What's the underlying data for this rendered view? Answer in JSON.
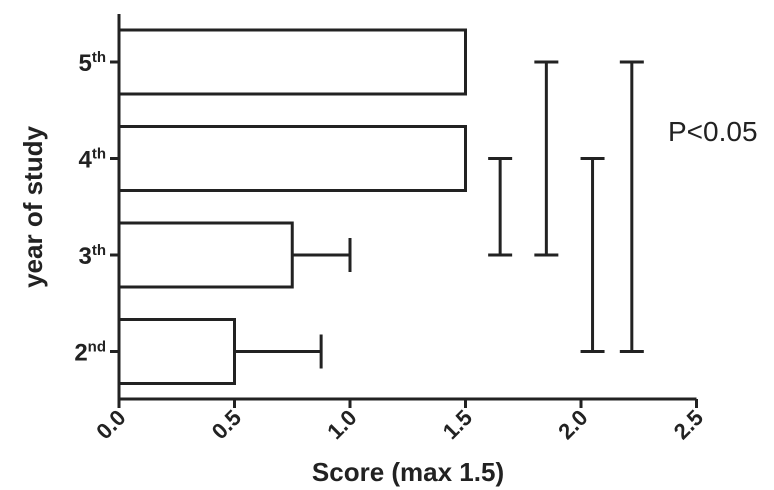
{
  "chart_data": {
    "type": "bar",
    "orientation": "horizontal",
    "title": "",
    "xlabel": "Score (max 1.5)",
    "ylabel": "year of study",
    "xlim": [
      0,
      2.5
    ],
    "xticks": [
      "0.0",
      "0.5",
      "1.0",
      "1.5",
      "2.0",
      "2.5"
    ],
    "categories": [
      {
        "base": "5",
        "sup": "th"
      },
      {
        "base": "4",
        "sup": "th"
      },
      {
        "base": "3",
        "sup": "th"
      },
      {
        "base": "2",
        "sup": "nd"
      }
    ],
    "values": [
      1.5,
      1.5,
      0.75,
      0.5
    ],
    "error_upper": [
      0,
      0,
      1.0,
      0.875
    ],
    "significance_brackets": [
      {
        "between": [
          1,
          2
        ],
        "x": 1.65
      },
      {
        "between": [
          0,
          2
        ],
        "x": 1.85
      },
      {
        "between": [
          1,
          3
        ],
        "x": 2.05
      },
      {
        "between": [
          0,
          3
        ],
        "x": 2.22
      }
    ],
    "annotation": "P<0.05",
    "grid": false,
    "legend": "none"
  }
}
